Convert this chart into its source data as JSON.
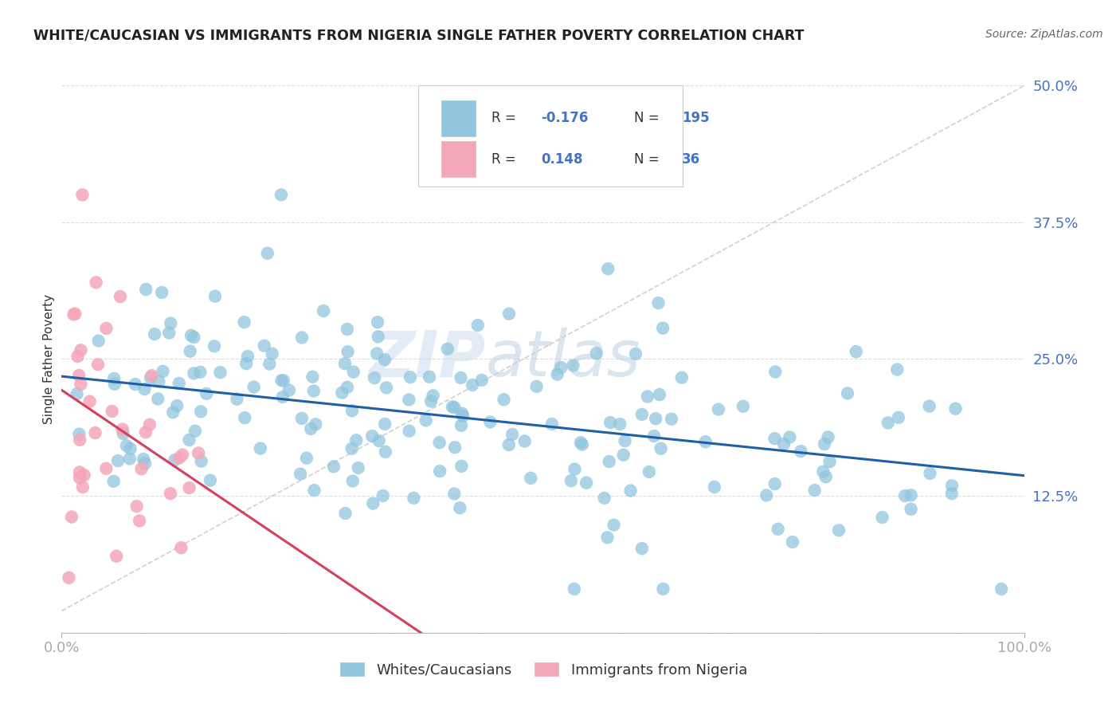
{
  "title": "WHITE/CAUCASIAN VS IMMIGRANTS FROM NIGERIA SINGLE FATHER POVERTY CORRELATION CHART",
  "source_text": "Source: ZipAtlas.com",
  "ylabel": "Single Father Poverty",
  "xlim": [
    0,
    1
  ],
  "ylim": [
    0,
    0.5
  ],
  "yticks": [
    0.0,
    0.125,
    0.25,
    0.375,
    0.5
  ],
  "ytick_labels": [
    "",
    "12.5%",
    "25.0%",
    "37.5%",
    "50.0%"
  ],
  "watermark_zip": "ZIP",
  "watermark_atlas": "atlas",
  "blue_color": "#92c5de",
  "pink_color": "#f4a7b9",
  "line_blue": "#1f5fa6",
  "line_pink": "#d44060",
  "ref_line_color": "#cccccc",
  "axis_color": "#4472C4",
  "grid_color": "#dddddd",
  "title_color": "#222222",
  "source_color": "#666666"
}
